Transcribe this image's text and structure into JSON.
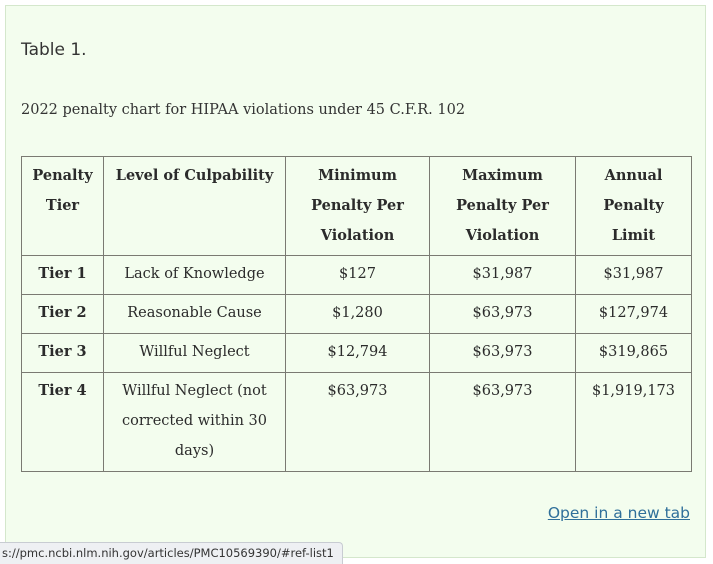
{
  "table_label": "Table 1.",
  "caption": "2022 penalty chart for HIPAA violations under 45 C.F.R. 102",
  "table": {
    "headers": [
      "Penalty Tier",
      "Level of Culpability",
      "Minimum Penalty Per Violation",
      "Maximum Penalty Per Violation",
      "Annual Penalty Limit"
    ],
    "rows": [
      [
        "Tier 1",
        "Lack of Knowledge",
        "$127",
        "$31,987",
        "$31,987"
      ],
      [
        "Tier 2",
        "Reasonable Cause",
        "$1,280",
        "$63,973",
        "$127,974"
      ],
      [
        "Tier 3",
        "Willful Neglect",
        "$12,794",
        "$63,973",
        "$319,865"
      ],
      [
        "Tier 4",
        "Willful Neglect (not corrected within 30 days)",
        "$63,973",
        "$63,973",
        "$1,919,173"
      ]
    ]
  },
  "open_link": "Open in a new tab",
  "status_url": "s://pmc.ncbi.nlm.nih.gov/articles/PMC10569390/#ref-list1",
  "colors": {
    "panel_background": "#f3fdee",
    "link": "#2f6f9a"
  }
}
